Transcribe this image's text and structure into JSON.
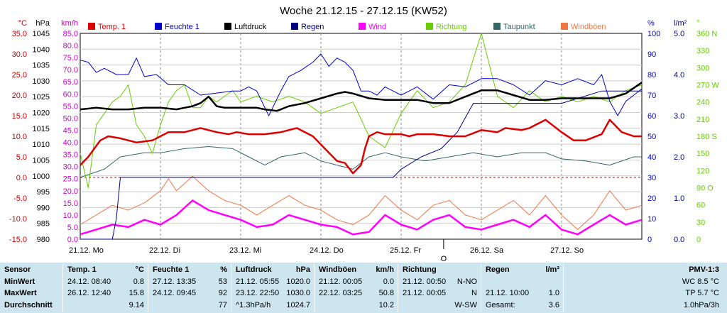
{
  "chart_data": {
    "type": "line",
    "title": "Woche 21.12.15 - 27.12.15 (KW52)",
    "axes": {
      "left": [
        {
          "unit": "°C",
          "color": "#cc0000",
          "ticks": [
            "35.0",
            "30.0",
            "25.0",
            "20.0",
            "15.0",
            "10.0",
            "5.0",
            "0.0",
            "-5.0",
            "-10.0",
            "-15.0"
          ],
          "ylim": [
            -15,
            35
          ]
        },
        {
          "unit": "hPa",
          "color": "#000000",
          "ticks": [
            "1045",
            "1040",
            "1035",
            "1030",
            "1025",
            "1020",
            "1015",
            "1010",
            "1005",
            "1000",
            "995",
            "990",
            "985",
            "980"
          ],
          "ylim": [
            980,
            1045
          ]
        },
        {
          "unit": "km/h",
          "color": "#cc00cc",
          "ticks": [
            "85.0",
            "80.0",
            "75.0",
            "70.0",
            "65.0",
            "60.0",
            "55.0",
            "50.0",
            "45.0",
            "40.0",
            "35.0",
            "30.0",
            "25.0",
            "20.0",
            "15.0",
            "10.0",
            "5.0",
            "0.0"
          ],
          "ylim": [
            0,
            85
          ]
        }
      ],
      "right": [
        {
          "unit": "%",
          "color": "#0000cc",
          "ticks": [
            "100",
            "90",
            "80",
            "70",
            "60",
            "50",
            "40",
            "30",
            "20",
            "10",
            "0"
          ],
          "ylim": [
            0,
            100
          ]
        },
        {
          "unit": "l/m²",
          "color": "#000080",
          "ticks": [
            "5.0",
            "4.0",
            "3.0",
            "2.0",
            "1.0",
            "0.0"
          ],
          "ylim": [
            0,
            5
          ]
        },
        {
          "unit": "°",
          "color": "#66cc00",
          "ticks": [
            "360 N",
            "330",
            "300",
            "270 W",
            "240",
            "210",
            "180 S",
            "150",
            "120",
            "90 O",
            "60",
            "30",
            "0"
          ],
          "ylim": [
            0,
            360
          ]
        }
      ]
    },
    "x": {
      "labels": [
        "21.12. Mo",
        "22.12. Di",
        "23.12. Mi",
        "24.12. Do",
        "25.12. Fr",
        "26.12. Sa",
        "27.12. So"
      ],
      "range_days": [
        0,
        7
      ]
    },
    "grid": true,
    "legend_position": "top",
    "series": [
      {
        "name": "Temp. 1",
        "color": "#dd0000",
        "unit": "°C",
        "x": [
          0,
          0.1,
          0.25,
          0.35,
          0.5,
          0.7,
          0.9,
          1.0,
          1.1,
          1.3,
          1.5,
          1.6,
          1.7,
          1.85,
          1.95,
          2.1,
          2.3,
          2.5,
          2.7,
          2.9,
          3.0,
          3.1,
          3.2,
          3.3,
          3.4,
          3.5,
          3.55,
          3.6,
          3.7,
          3.8,
          4.0,
          4.1,
          4.2,
          4.4,
          4.6,
          4.8,
          5.0,
          5.2,
          5.3,
          5.5,
          5.6,
          5.8,
          6.0,
          6.15,
          6.3,
          6.5,
          6.6,
          6.75,
          6.9,
          7.0
        ],
        "values": [
          3,
          5,
          9,
          10,
          9.5,
          8.5,
          9,
          10,
          11,
          11,
          12,
          11.5,
          11,
          10.5,
          11,
          10.5,
          10.5,
          11,
          12,
          10,
          8,
          6,
          4,
          3.5,
          1,
          3,
          7,
          10,
          11,
          10.5,
          10.5,
          10,
          10.5,
          10.5,
          10,
          10,
          11.5,
          11,
          12,
          11.5,
          12,
          14,
          11,
          9,
          9,
          10.5,
          14,
          11,
          10,
          10
        ]
      },
      {
        "name": "Feuchte 1",
        "color": "#0000cc",
        "unit": "%",
        "x": [
          0,
          0.1,
          0.2,
          0.3,
          0.45,
          0.6,
          0.7,
          0.8,
          0.95,
          1.1,
          1.3,
          1.5,
          1.7,
          1.9,
          2.0,
          2.1,
          2.2,
          2.35,
          2.5,
          2.6,
          2.75,
          2.9,
          3.0,
          3.1,
          3.2,
          3.3,
          3.4,
          3.5,
          3.6,
          3.7,
          3.8,
          4.0,
          4.2,
          4.4,
          4.6,
          4.8,
          5.0,
          5.2,
          5.4,
          5.6,
          5.8,
          6.0,
          6.2,
          6.4,
          6.5,
          6.6,
          6.7,
          6.8,
          6.9,
          7.0
        ],
        "values": [
          87,
          86,
          81,
          83,
          80,
          80,
          88,
          79,
          80,
          75,
          75,
          70,
          71,
          72,
          72,
          74,
          72,
          60,
          72,
          79,
          82,
          86,
          90,
          84,
          88,
          86,
          82,
          72,
          72,
          70,
          74,
          70,
          74,
          68,
          75,
          74,
          78,
          78,
          75,
          70,
          77,
          75,
          78,
          75,
          80,
          67,
          60,
          67,
          70,
          73
        ]
      },
      {
        "name": "Luftdruck",
        "color": "#000000",
        "unit": "hPa",
        "x": [
          0,
          0.2,
          0.4,
          0.6,
          0.8,
          1.0,
          1.2,
          1.4,
          1.5,
          1.6,
          1.7,
          1.8,
          2.0,
          2.2,
          2.3,
          2.45,
          2.6,
          2.8,
          3.0,
          3.2,
          3.3,
          3.4,
          3.6,
          3.8,
          4.0,
          4.2,
          4.4,
          4.6,
          4.8,
          5.0,
          5.2,
          5.4,
          5.6,
          5.8,
          6.0,
          6.2,
          6.4,
          6.6,
          6.8,
          7.0
        ],
        "values": [
          1021,
          1021.5,
          1021,
          1021,
          1021.5,
          1021.5,
          1021,
          1022,
          1023,
          1025,
          1022,
          1021.5,
          1021.5,
          1021.5,
          1021,
          1020.5,
          1022,
          1023,
          1024.5,
          1026,
          1026.5,
          1026,
          1024.5,
          1024,
          1024,
          1024,
          1023,
          1023,
          1025,
          1027,
          1027,
          1025.5,
          1024,
          1024,
          1024.5,
          1024.5,
          1024.5,
          1024.5,
          1026,
          1029.5
        ]
      },
      {
        "name": "Regen",
        "color": "#000080",
        "unit": "l/m²",
        "x": [
          0,
          0.4,
          0.45,
          0.5,
          1.0,
          2.0,
          3.0,
          3.9,
          4.0,
          4.25,
          4.5,
          4.7,
          4.9,
          5.0,
          5.5,
          6.0,
          6.5,
          7.0
        ],
        "values": [
          0,
          0,
          0.5,
          1.5,
          1.5,
          1.5,
          1.5,
          1.5,
          1.7,
          2.0,
          2.2,
          2.6,
          3.3,
          3.3,
          3.3,
          3.3,
          3.6,
          3.6
        ]
      },
      {
        "name": "Wind",
        "color": "#ff00ff",
        "unit": "km/h",
        "x": [
          0,
          0.2,
          0.4,
          0.6,
          0.8,
          1.0,
          1.2,
          1.4,
          1.6,
          1.8,
          2.0,
          2.2,
          2.4,
          2.6,
          2.8,
          3.0,
          3.2,
          3.4,
          3.6,
          3.8,
          4.0,
          4.2,
          4.4,
          4.6,
          4.8,
          5.0,
          5.2,
          5.4,
          5.6,
          5.8,
          6.0,
          6.2,
          6.4,
          6.6,
          6.8,
          7.0
        ],
        "values": [
          2,
          4,
          6,
          5,
          8,
          6,
          10,
          16,
          12,
          10,
          8,
          5,
          6,
          10,
          8,
          6,
          5,
          2,
          3,
          10,
          6,
          4,
          8,
          10,
          5,
          4,
          6,
          8,
          5,
          10,
          4,
          2,
          6,
          10,
          6,
          8
        ]
      },
      {
        "name": "Richtung",
        "color": "#66cc00",
        "unit": "°",
        "x": [
          0,
          0.1,
          0.2,
          0.3,
          0.4,
          0.5,
          0.6,
          0.7,
          0.8,
          0.9,
          1.0,
          1.1,
          1.2,
          1.3,
          1.4,
          1.5,
          1.6,
          1.7,
          1.8,
          1.9,
          2.0,
          2.2,
          2.4,
          2.6,
          2.8,
          3.0,
          3.2,
          3.4,
          3.6,
          3.8,
          4.0,
          4.2,
          4.4,
          4.6,
          4.8,
          5.0,
          5.2,
          5.4,
          5.6,
          5.8,
          6.0,
          6.2,
          6.4,
          6.6,
          6.8,
          7.0
        ],
        "values": [
          150,
          90,
          200,
          220,
          240,
          250,
          270,
          200,
          180,
          150,
          200,
          240,
          260,
          270,
          230,
          230,
          250,
          240,
          250,
          260,
          240,
          250,
          240,
          250,
          240,
          220,
          230,
          240,
          180,
          160,
          220,
          260,
          230,
          240,
          270,
          360,
          250,
          230,
          260,
          240,
          250,
          240,
          250,
          240,
          260,
          270
        ]
      },
      {
        "name": "Taupunkt",
        "color": "#336666",
        "unit": "°C",
        "x": [
          0,
          0.3,
          0.5,
          0.8,
          1.0,
          1.3,
          1.6,
          1.9,
          2.1,
          2.3,
          2.5,
          2.8,
          3.0,
          3.2,
          3.4,
          3.6,
          3.8,
          4.0,
          4.3,
          4.6,
          4.9,
          5.2,
          5.5,
          5.8,
          6.0,
          6.3,
          6.6,
          6.9,
          7.0
        ],
        "values": [
          0,
          2,
          5,
          6,
          6,
          7,
          7.5,
          7,
          5,
          3,
          5,
          6,
          4,
          3,
          2,
          5,
          6,
          5,
          4,
          5,
          6,
          5,
          6,
          6,
          4.5,
          4,
          3,
          5,
          5
        ]
      },
      {
        "name": "Windböen",
        "color": "#ee7744",
        "unit": "km/h",
        "x": [
          0,
          0.2,
          0.4,
          0.6,
          0.8,
          1.0,
          1.1,
          1.2,
          1.4,
          1.6,
          1.8,
          2.0,
          2.2,
          2.4,
          2.6,
          2.8,
          3.0,
          3.2,
          3.4,
          3.6,
          3.8,
          4.0,
          4.2,
          4.4,
          4.6,
          4.8,
          5.0,
          5.2,
          5.4,
          5.6,
          5.8,
          6.0,
          6.2,
          6.4,
          6.6,
          6.8,
          7.0
        ],
        "values": [
          6,
          10,
          14,
          12,
          15,
          20,
          25,
          20,
          26,
          20,
          16,
          14,
          10,
          14,
          18,
          14,
          12,
          8,
          6,
          10,
          18,
          12,
          8,
          14,
          16,
          10,
          8,
          12,
          16,
          10,
          18,
          10,
          4,
          10,
          20,
          12,
          14
        ]
      }
    ],
    "marker": {
      "x": 4.53,
      "label": "O"
    }
  },
  "stats": {
    "columns": [
      {
        "header": {
          "label": "Sensor",
          "unit": ""
        },
        "rows": [
          {
            "label": "MinWert"
          },
          {
            "label": "MaxWert"
          },
          {
            "label": "Durchschnitt"
          }
        ]
      },
      {
        "header": {
          "label": "Temp. 1",
          "unit": "°C"
        },
        "rows": [
          {
            "time": "24.12.  08:40",
            "value": "0.8"
          },
          {
            "time": "26.12.  12:40",
            "value": "15.8"
          },
          {
            "time": "",
            "value": "9.14"
          }
        ]
      },
      {
        "header": {
          "label": "Feuchte 1",
          "unit": "%"
        },
        "rows": [
          {
            "time": "27.12.  13:35",
            "value": "53"
          },
          {
            "time": "24.12.  09:45",
            "value": "92"
          },
          {
            "time": "",
            "value": "77"
          }
        ]
      },
      {
        "header": {
          "label": "Luftdruck",
          "unit": "hPa"
        },
        "rows": [
          {
            "time": "21.12.  05:55",
            "value": "1020.0"
          },
          {
            "time": "23.12.  22:50",
            "value": "1030.0"
          },
          {
            "time": "^1.3hPa/h",
            "value": "1024.7"
          }
        ]
      },
      {
        "header": {
          "label": "Windböen",
          "unit": "km/h"
        },
        "rows": [
          {
            "time": "21.12.  00:05",
            "value": "0.0"
          },
          {
            "time": "22.12.  03:25",
            "value": "50.8"
          },
          {
            "time": "",
            "value": "10.2"
          }
        ]
      },
      {
        "header": {
          "label": "Richtung",
          "unit": ""
        },
        "rows": [
          {
            "time": "21.12.  00:50",
            "value": "N-NO"
          },
          {
            "time": "21.12.  00:05",
            "value": "N"
          },
          {
            "time": "",
            "value": "W-SW"
          }
        ]
      },
      {
        "header": {
          "label": "Regen",
          "unit": "l/m²"
        },
        "rows": [
          {
            "time": "",
            "value": ""
          },
          {
            "time": "21.12.  10:00",
            "value": "1.0"
          },
          {
            "time": "Gesamt:",
            "value": "3.6"
          }
        ]
      },
      {
        "header": {
          "label": "PMV-1:3",
          "unit": ""
        },
        "rows": [
          {
            "value": "WC 8.5 °C"
          },
          {
            "value": "TP 5.7 °C"
          },
          {
            "value": "1.0hPa/3h"
          }
        ]
      }
    ]
  }
}
